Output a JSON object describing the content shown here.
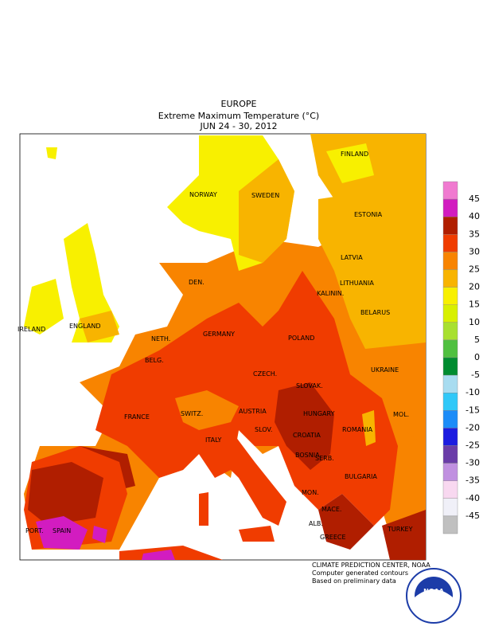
{
  "header": {
    "region": "EUROPE",
    "title": "Extreme Maximum Temperature (°C)",
    "period": "JUN 24 - 30, 2012"
  },
  "map": {
    "labels": [
      "NORWAY",
      "SWEDEN",
      "FINLAND",
      "ESTONIA",
      "LATVIA",
      "LITHUANIA",
      "KALININ.",
      "BELARUS",
      "DEN.",
      "IRELAND",
      "ENGLAND",
      "NETH.",
      "BELG.",
      "GERMANY",
      "POLAND",
      "CZECH.",
      "SLOVAK.",
      "UKRAINE",
      "FRANCE",
      "SWITZ.",
      "AUSTRIA",
      "HUNGARY",
      "MOL.",
      "ROMANIA",
      "SLOV.",
      "CROATIA",
      "ITALY",
      "BOSNIA",
      "SERB.",
      "BULGARIA",
      "MON.",
      "MACE.",
      "ALB.",
      "GREECE",
      "PORT.",
      "SPAIN",
      "TURKEY"
    ]
  },
  "legend": {
    "ticks": [
      45,
      40,
      35,
      30,
      25,
      20,
      15,
      10,
      5,
      0,
      -5,
      -10,
      -15,
      -20,
      -25,
      -30,
      -35,
      -40,
      -45
    ],
    "colors": [
      "#f07ad0",
      "#d21cc0",
      "#b01e00",
      "#f03c00",
      "#f88400",
      "#f8b400",
      "#f8f000",
      "#d8f000",
      "#a8e030",
      "#50c040",
      "#008c30",
      "#a8dcf0",
      "#30c8f8",
      "#1c8cf8",
      "#1c1ce0",
      "#6a3ca8",
      "#c090e0",
      "#f8d8f0",
      "#f0f0f8",
      "#c0c0c0"
    ]
  },
  "footer": {
    "lines": [
      "CLIMATE PREDICTION CENTER, NOAA",
      "Computer generated contours",
      "Based on preliminary data"
    ],
    "logo": "NOAA"
  }
}
